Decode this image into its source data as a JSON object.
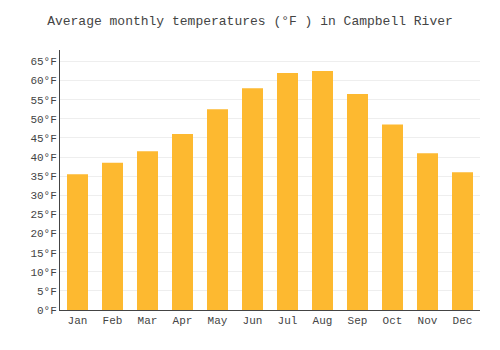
{
  "chart_data": {
    "type": "bar",
    "title": "Average monthly temperatures (°F ) in Campbell River",
    "categories": [
      "Jan",
      "Feb",
      "Mar",
      "Apr",
      "May",
      "Jun",
      "Jul",
      "Aug",
      "Sep",
      "Oct",
      "Nov",
      "Dec"
    ],
    "values": [
      35.5,
      38.5,
      41.5,
      46.0,
      52.5,
      58.0,
      62.0,
      62.5,
      56.5,
      48.5,
      41.0,
      36.0
    ],
    "color": "#FDB930",
    "ylim": [
      0,
      68
    ],
    "yticks": [
      {
        "value": 0,
        "label": "0°F"
      },
      {
        "value": 5,
        "label": "5°F"
      },
      {
        "value": 10,
        "label": "10°F"
      },
      {
        "value": 15,
        "label": "15°F"
      },
      {
        "value": 20,
        "label": "20°F"
      },
      {
        "value": 25,
        "label": "25°F"
      },
      {
        "value": 30,
        "label": "30°F"
      },
      {
        "value": 35,
        "label": "35°F"
      },
      {
        "value": 40,
        "label": "40°F"
      },
      {
        "value": 45,
        "label": "45°F"
      },
      {
        "value": 50,
        "label": "50°F"
      },
      {
        "value": 55,
        "label": "55°F"
      },
      {
        "value": 60,
        "label": "60°F"
      },
      {
        "value": 65,
        "label": "65°F"
      }
    ],
    "grid": true
  }
}
